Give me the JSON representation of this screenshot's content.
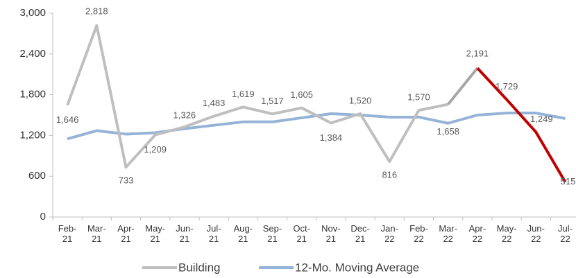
{
  "chart_data": {
    "type": "line",
    "categories": [
      "Feb- 21",
      "Mar- 21",
      "Apr- 21",
      "May- 21",
      "Jun- 21",
      "Jul- 21",
      "Aug- 21",
      "Sep- 21",
      "Oct- 21",
      "Nov- 21",
      "Dec- 21",
      "Jan- 22",
      "Feb- 22",
      "Mar- 22",
      "Apr- 22",
      "May- 22",
      "Jun- 22",
      "Jul- 22"
    ],
    "series": [
      {
        "name": "Building",
        "color": "#bfbfbf",
        "highlight_color": "#c00000",
        "highlight_start": 14,
        "values": [
          1646,
          2818,
          733,
          1209,
          1326,
          1483,
          1619,
          1517,
          1605,
          1384,
          1520,
          816,
          1570,
          1658,
          2191,
          1729,
          1249,
          515
        ],
        "value_labels": [
          "1,646",
          "2,818",
          "733",
          "1,209",
          "1,326",
          "1,483",
          "1,619",
          "1,517",
          "1,605",
          "1,384",
          "1,520",
          "816",
          "1,570",
          "1,658",
          "2,191",
          "1,729",
          "1,249",
          "515"
        ]
      },
      {
        "name": "12-Mo. Moving Average",
        "color": "#95b3d7",
        "values": [
          1150,
          1270,
          1220,
          1240,
          1300,
          1350,
          1400,
          1400,
          1460,
          1520,
          1500,
          1470,
          1470,
          1380,
          1500,
          1530,
          1530,
          1450
        ]
      }
    ],
    "ylim": [
      0,
      3000
    ],
    "yticks": [
      0,
      {
        "value": 600,
        "label": "600"
      },
      {
        "value": 1200,
        "label": "1,200"
      },
      {
        "value": 1800,
        "label": "1,800"
      },
      {
        "value": 2400,
        "label": "2,400"
      },
      {
        "value": 3000,
        "label": "3,000"
      }
    ]
  }
}
